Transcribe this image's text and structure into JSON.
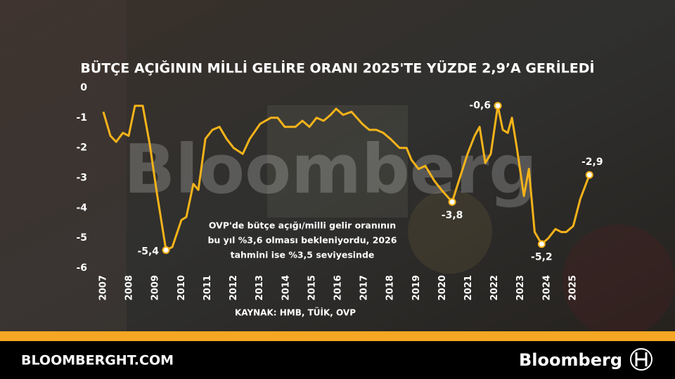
{
  "chart_data": {
    "type": "line",
    "title": "BÜTÇE AÇIĞININ MİLLİ GELİRE ORANI 2025'TE YÜZDE 2,9’A GERİLEDİ",
    "annotation": [
      "OVP'de bütçe açığı/milli gelir oranının",
      "bu yıl %3,6 olması bekleniyordu, 2026",
      "tahmini ise %3,5 seviyesinde"
    ],
    "source": "KAYNAK: HMB, TÜİK, OVP",
    "color": "#f5b31a",
    "x": [
      2007.0,
      2007.27,
      2007.49,
      2007.75,
      2007.97,
      2008.21,
      2008.51,
      2008.78,
      2009.05,
      2009.4,
      2009.64,
      2009.99,
      2010.18,
      2010.45,
      2010.64,
      2010.91,
      2011.18,
      2011.45,
      2011.72,
      2011.99,
      2012.34,
      2012.61,
      2013.01,
      2013.42,
      2013.68,
      2013.95,
      2014.36,
      2014.63,
      2014.9,
      2015.17,
      2015.44,
      2015.71,
      2015.92,
      2016.19,
      2016.51,
      2016.92,
      2017.19,
      2017.46,
      2017.73,
      2018.0,
      2018.35,
      2018.62,
      2018.81,
      2019.08,
      2019.34,
      2019.69,
      2019.96,
      2020.37,
      2020.55,
      2020.96,
      2021.23,
      2021.42,
      2021.64,
      2021.85,
      2022.12,
      2022.31,
      2022.5,
      2022.66,
      2022.85,
      2023.12,
      2023.31,
      2023.53,
      2023.8,
      2024.06,
      2024.33,
      2024.55,
      2024.74,
      2025.01,
      2025.28,
      2025.63
    ],
    "values": [
      -0.8,
      -1.6,
      -1.8,
      -1.5,
      -1.6,
      -0.6,
      -0.6,
      -1.9,
      -3.5,
      -5.4,
      -5.3,
      -4.4,
      -4.3,
      -3.2,
      -3.4,
      -1.7,
      -1.4,
      -1.3,
      -1.7,
      -2.0,
      -2.2,
      -1.7,
      -1.2,
      -1.0,
      -1.0,
      -1.3,
      -1.3,
      -1.1,
      -1.3,
      -1.0,
      -1.1,
      -0.9,
      -0.7,
      -0.9,
      -0.8,
      -1.2,
      -1.4,
      -1.4,
      -1.5,
      -1.7,
      -2.0,
      -2.0,
      -2.4,
      -2.7,
      -2.6,
      -3.1,
      -3.4,
      -3.8,
      -3.3,
      -2.2,
      -1.6,
      -1.3,
      -2.5,
      -2.2,
      -0.6,
      -1.4,
      -1.5,
      -1.0,
      -2.0,
      -3.6,
      -2.7,
      -4.8,
      -5.2,
      -5.0,
      -4.7,
      -4.8,
      -4.8,
      -4.6,
      -3.7,
      -2.9
    ],
    "value_labels": [
      null,
      null,
      null,
      null,
      null,
      null,
      null,
      null,
      null,
      "-5,4",
      null,
      null,
      null,
      null,
      null,
      null,
      null,
      null,
      null,
      null,
      null,
      null,
      null,
      null,
      null,
      null,
      null,
      null,
      null,
      null,
      null,
      null,
      null,
      null,
      null,
      null,
      null,
      null,
      null,
      null,
      null,
      null,
      null,
      null,
      null,
      null,
      null,
      "-3,8",
      null,
      null,
      null,
      null,
      null,
      null,
      "-0,6",
      null,
      null,
      null,
      null,
      null,
      null,
      null,
      "-5,2",
      null,
      null,
      null,
      null,
      null,
      null,
      "-2,9"
    ],
    "xlim": [
      2006.8,
      2026.0
    ],
    "xticks": [
      2007,
      2008,
      2009,
      2010,
      2011,
      2012,
      2013,
      2014,
      2015,
      2016,
      2017,
      2018,
      2019,
      2020,
      2021,
      2022,
      2023,
      2024,
      2025
    ],
    "ylim": [
      -6,
      0
    ],
    "yticks": [
      0,
      -1,
      -2,
      -3,
      -4,
      -5,
      -6
    ]
  },
  "watermark": "Bloomberg",
  "footer": {
    "site": "BLOOMBERGHT.COM",
    "brand": "Bloomberg"
  }
}
